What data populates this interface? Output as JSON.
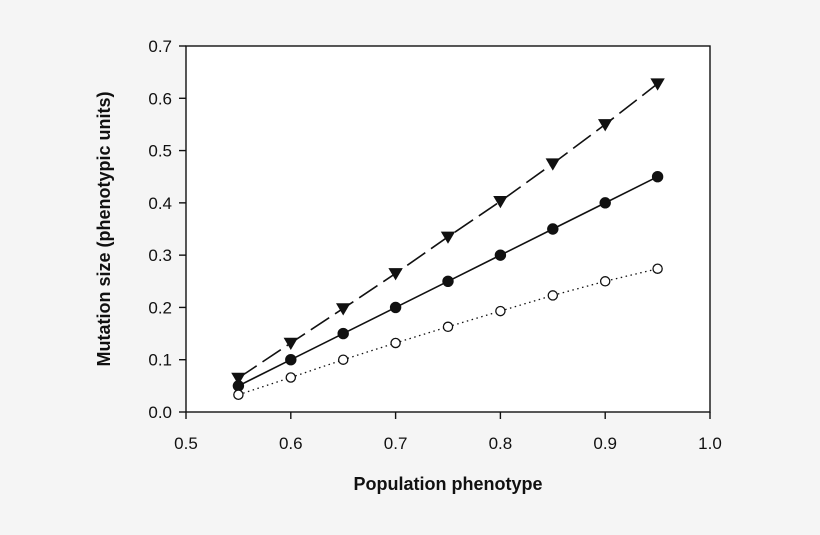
{
  "chart_data": {
    "type": "line",
    "title": "",
    "xlabel": "Population phenotype",
    "ylabel": "Mutation size (phenotypic units)",
    "xlim": [
      0.5,
      1.0
    ],
    "ylim": [
      0.0,
      0.7
    ],
    "xticks": [
      "0.5",
      "0.6",
      "0.7",
      "0.8",
      "0.9",
      "1.0"
    ],
    "yticks": [
      "0.0",
      "0.1",
      "0.2",
      "0.3",
      "0.4",
      "0.5",
      "0.6",
      "0.7"
    ],
    "grid": false,
    "legend": "none",
    "x": [
      0.55,
      0.6,
      0.65,
      0.7,
      0.75,
      0.8,
      0.85,
      0.9,
      0.95
    ],
    "series": [
      {
        "marker": "triangle-down-filled",
        "line": "dashed",
        "color": "#111111",
        "values": [
          0.065,
          0.132,
          0.198,
          0.265,
          0.335,
          0.403,
          0.475,
          0.55,
          0.628
        ]
      },
      {
        "marker": "circle-filled",
        "line": "solid",
        "color": "#111111",
        "values": [
          0.05,
          0.1,
          0.15,
          0.2,
          0.25,
          0.3,
          0.35,
          0.4,
          0.45
        ]
      },
      {
        "marker": "circle-open",
        "line": "dotted",
        "color": "#111111",
        "values": [
          0.033,
          0.066,
          0.1,
          0.132,
          0.163,
          0.193,
          0.223,
          0.25,
          0.274
        ]
      }
    ]
  }
}
